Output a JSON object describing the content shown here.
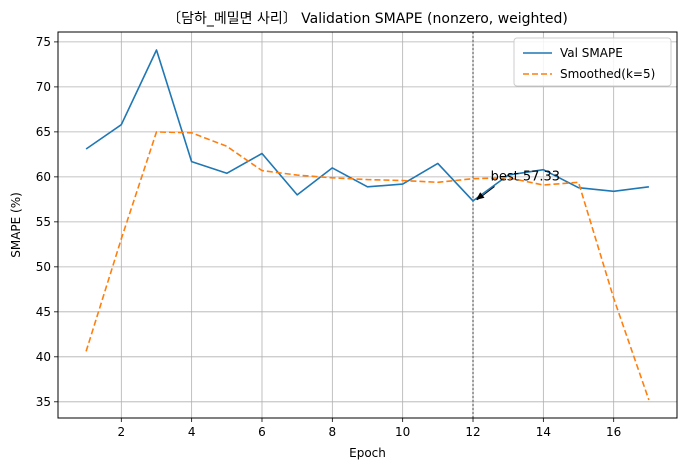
{
  "chart_data": {
    "type": "line",
    "title": "〔담하_메밀면 사리〕 Validation SMAPE (nonzero, weighted)",
    "xlabel": "Epoch",
    "ylabel": "SMAPE (%)",
    "x": [
      1,
      2,
      3,
      4,
      5,
      6,
      7,
      8,
      9,
      10,
      11,
      12,
      13,
      14,
      15,
      16,
      17
    ],
    "xlim": [
      0.2,
      17.8
    ],
    "ylim": [
      33.2,
      76.1
    ],
    "xticks": [
      2,
      4,
      6,
      8,
      10,
      12,
      14,
      16
    ],
    "yticks": [
      35,
      40,
      45,
      50,
      55,
      60,
      65,
      70,
      75
    ],
    "grid": true,
    "legend_position": "top-right",
    "series": [
      {
        "name": "Val SMAPE",
        "color": "#1f77b4",
        "style": "solid",
        "values": [
          63.1,
          65.8,
          74.1,
          61.7,
          60.4,
          62.6,
          58.0,
          61.0,
          58.9,
          59.2,
          61.5,
          57.33,
          60.2,
          60.8,
          58.8,
          58.4,
          58.9
        ]
      },
      {
        "name": "Smoothed(k=5)",
        "color": "#ff7f0e",
        "style": "dashed",
        "values": [
          40.6,
          53.1,
          65.0,
          64.9,
          63.4,
          60.7,
          60.2,
          59.9,
          59.7,
          59.6,
          59.4,
          59.8,
          59.9,
          59.1,
          59.4,
          46.5,
          35.2
        ]
      }
    ],
    "vline": {
      "x": 12,
      "color": "#808080",
      "style": "dotted"
    },
    "annotation": {
      "text": "best 57.33",
      "x": 12,
      "y": 57.33,
      "text_x": 12.5,
      "text_y": 59.6
    }
  }
}
